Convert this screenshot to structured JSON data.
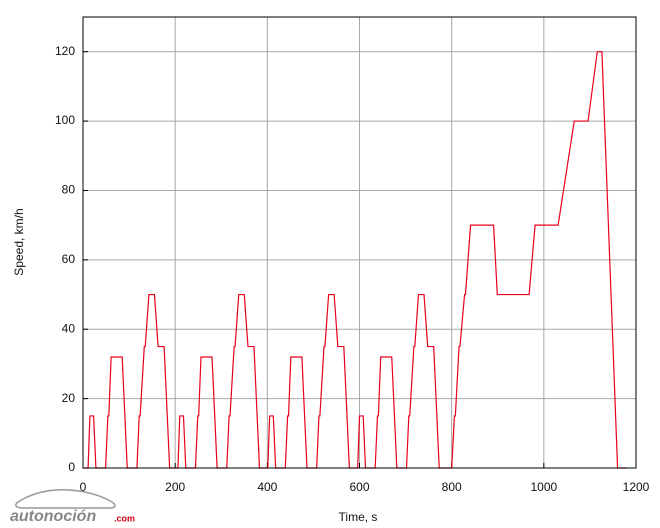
{
  "chart_data": {
    "type": "line",
    "x_label": "Time, s",
    "y_label": "Speed, km/h",
    "watermark": "autonoción",
    "watermark_suffix": ".com",
    "x": [
      0,
      11,
      15,
      23,
      28,
      49,
      54,
      56,
      61,
      85,
      96,
      117,
      122,
      124,
      133,
      135,
      143,
      155,
      163,
      176,
      188,
      195,
      206,
      210,
      218,
      223,
      244,
      249,
      251,
      256,
      280,
      291,
      312,
      317,
      319,
      328,
      330,
      338,
      350,
      358,
      371,
      383,
      390,
      401,
      405,
      413,
      418,
      439,
      444,
      446,
      451,
      475,
      486,
      507,
      512,
      514,
      523,
      525,
      533,
      545,
      553,
      566,
      578,
      585,
      596,
      600,
      608,
      613,
      634,
      639,
      641,
      646,
      670,
      681,
      702,
      707,
      709,
      718,
      720,
      728,
      740,
      748,
      761,
      773,
      780,
      800,
      806,
      808,
      816,
      818,
      828,
      830,
      841,
      891,
      899,
      968,
      981,
      1031,
      1066,
      1096,
      1116,
      1126,
      1160,
      1180
    ],
    "values": [
      0,
      0,
      15,
      15,
      0,
      0,
      15,
      15,
      32,
      32,
      0,
      0,
      15,
      15,
      35,
      35,
      50,
      50,
      35,
      35,
      0,
      0,
      0,
      15,
      15,
      0,
      0,
      15,
      15,
      32,
      32,
      0,
      0,
      15,
      15,
      35,
      35,
      50,
      50,
      35,
      35,
      0,
      0,
      0,
      15,
      15,
      0,
      0,
      15,
      15,
      32,
      32,
      0,
      0,
      15,
      15,
      35,
      35,
      50,
      50,
      35,
      35,
      0,
      0,
      0,
      15,
      15,
      0,
      0,
      15,
      15,
      32,
      32,
      0,
      0,
      15,
      15,
      35,
      35,
      50,
      50,
      35,
      35,
      0,
      0,
      0,
      15,
      15,
      35,
      35,
      50,
      50,
      70,
      70,
      50,
      50,
      70,
      70,
      100,
      100,
      120,
      120,
      0,
      0
    ],
    "color": "#e8001c",
    "xlim": [
      0,
      1200
    ],
    "xticks": [
      0,
      200,
      400,
      600,
      800,
      1000,
      1200
    ],
    "ylim": [
      0,
      130
    ],
    "yticks": [
      0,
      20,
      40,
      60,
      80,
      100,
      120
    ],
    "grid": true
  }
}
